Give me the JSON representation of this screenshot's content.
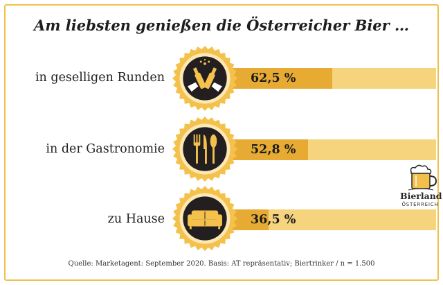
{
  "title": "Am liebsten genießen die Österreicher Bier …",
  "rows": [
    {
      "label": "in geselligen Runden",
      "value_text": "62,5 %",
      "icon": "cheers-icon"
    },
    {
      "label": "in der Gastronomie",
      "value_text": "52,8 %",
      "icon": "cutlery-icon"
    },
    {
      "label": "zu Hause",
      "value_text": "36,5 %",
      "icon": "sofa-icon"
    }
  ],
  "logo": {
    "word": "Bierland",
    "sub": "ÖSTERREICH",
    "icon": "beer-mug-icon"
  },
  "source": "Quelle: Marketagent: September 2020. Basis: AT repräsentativ; Biertrinker / n = 1.500",
  "colors": {
    "bar_fill": "#e7ab33",
    "bar_track": "#f6d47e",
    "badge": "#f4c24c",
    "badge_inner": "#231f20",
    "frame": "#efc24e"
  },
  "chart_data": {
    "type": "bar",
    "orientation": "horizontal",
    "title": "Am liebsten genießen die Österreicher Bier …",
    "categories": [
      "in geselligen Runden",
      "in der Gastronomie",
      "zu Hause"
    ],
    "values": [
      62.5,
      52.8,
      36.5
    ],
    "value_labels": [
      "62,5 %",
      "52,8 %",
      "36,5 %"
    ],
    "unit": "%",
    "xlim": [
      0,
      100
    ],
    "grid": false,
    "legend": "none"
  }
}
